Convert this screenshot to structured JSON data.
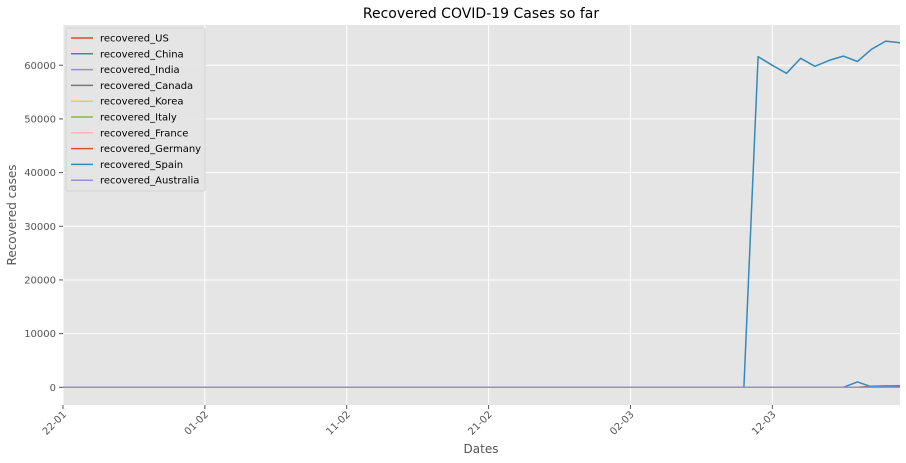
{
  "chart_data": {
    "type": "line",
    "title": "Recovered COVID-19 Cases so far",
    "xlabel": "Dates",
    "ylabel": "Recovered cases",
    "x_ticks": [
      "22-01",
      "01-02",
      "11-02",
      "21-02",
      "02-03",
      "12-03"
    ],
    "x": [
      "22-01",
      "23-01",
      "24-01",
      "25-01",
      "26-01",
      "27-01",
      "28-01",
      "29-01",
      "30-01",
      "31-01",
      "01-02",
      "02-02",
      "03-02",
      "04-02",
      "05-02",
      "06-02",
      "07-02",
      "08-02",
      "09-02",
      "10-02",
      "11-02",
      "12-02",
      "13-02",
      "14-02",
      "15-02",
      "16-02",
      "17-02",
      "18-02",
      "19-02",
      "20-02",
      "21-02",
      "22-02",
      "23-02",
      "24-02",
      "25-02",
      "26-02",
      "27-02",
      "28-02",
      "29-02",
      "01-03",
      "02-03",
      "03-03",
      "04-03",
      "05-03",
      "06-03",
      "07-03",
      "08-03",
      "09-03",
      "10-03",
      "11-03",
      "12-03",
      "13-03",
      "14-03",
      "15-03",
      "16-03",
      "17-03",
      "18-03",
      "19-03",
      "20-03",
      "21-03"
    ],
    "xlim": [
      "22-01",
      "21-03"
    ],
    "y_ticks": [
      0,
      10000,
      20000,
      30000,
      40000,
      50000,
      60000
    ],
    "ylim": [
      -3300,
      67500
    ],
    "grid": true,
    "legend_position": "upper-left",
    "series": [
      {
        "name": "recovered_US",
        "color": "#E24A33",
        "values": [
          0,
          0,
          0,
          0,
          0,
          0,
          0,
          0,
          0,
          0,
          0,
          0,
          0,
          0,
          0,
          0,
          0,
          0,
          0,
          0,
          0,
          0,
          0,
          0,
          0,
          0,
          0,
          0,
          0,
          0,
          0,
          0,
          0,
          0,
          0,
          0,
          0,
          0,
          0,
          0,
          0,
          0,
          0,
          0,
          0,
          0,
          0,
          0,
          0,
          0,
          0,
          0,
          0,
          0,
          0,
          0,
          0,
          0,
          147,
          147
        ]
      },
      {
        "name": "recovered_China",
        "color": "#348ABD",
        "values": [
          0,
          0,
          0,
          0,
          0,
          0,
          0,
          0,
          0,
          0,
          0,
          0,
          0,
          0,
          0,
          0,
          0,
          0,
          0,
          0,
          0,
          0,
          0,
          0,
          0,
          0,
          0,
          0,
          0,
          0,
          0,
          0,
          0,
          0,
          0,
          0,
          0,
          0,
          0,
          0,
          0,
          0,
          0,
          0,
          0,
          0,
          0,
          0,
          0,
          61600,
          60000,
          58500,
          61300,
          59800,
          60900,
          61700,
          60700,
          63000,
          64500,
          64200
        ]
      },
      {
        "name": "recovered_India",
        "color": "#988ED5",
        "values": [
          0,
          0,
          0,
          0,
          0,
          0,
          0,
          0,
          0,
          0,
          0,
          0,
          0,
          0,
          0,
          0,
          0,
          0,
          0,
          0,
          0,
          0,
          0,
          0,
          0,
          0,
          0,
          0,
          0,
          0,
          0,
          0,
          0,
          0,
          0,
          0,
          0,
          0,
          0,
          0,
          0,
          0,
          0,
          0,
          0,
          0,
          0,
          0,
          0,
          0,
          0,
          0,
          0,
          0,
          0,
          0,
          0,
          0,
          0,
          0
        ]
      },
      {
        "name": "recovered_Canada",
        "color": "#777777",
        "values": [
          0,
          0,
          0,
          0,
          0,
          0,
          0,
          0,
          0,
          0,
          0,
          0,
          0,
          0,
          0,
          0,
          0,
          0,
          0,
          0,
          0,
          0,
          0,
          0,
          0,
          0,
          0,
          0,
          0,
          0,
          0,
          0,
          0,
          0,
          0,
          0,
          0,
          0,
          0,
          0,
          0,
          0,
          0,
          0,
          0,
          0,
          0,
          0,
          0,
          0,
          0,
          0,
          0,
          0,
          0,
          0,
          0,
          0,
          0,
          0
        ]
      },
      {
        "name": "recovered_Korea",
        "color": "#FBC15E",
        "values": [
          0,
          0,
          0,
          0,
          0,
          0,
          0,
          0,
          0,
          0,
          0,
          0,
          0,
          0,
          0,
          0,
          0,
          0,
          0,
          0,
          0,
          0,
          0,
          0,
          0,
          0,
          0,
          0,
          0,
          0,
          0,
          0,
          0,
          0,
          0,
          0,
          0,
          0,
          0,
          0,
          0,
          0,
          0,
          0,
          0,
          0,
          0,
          0,
          0,
          0,
          0,
          0,
          0,
          0,
          0,
          0,
          0,
          0,
          0,
          0
        ]
      },
      {
        "name": "recovered_Italy",
        "color": "#8EBA42",
        "values": [
          0,
          0,
          0,
          0,
          0,
          0,
          0,
          0,
          0,
          0,
          0,
          0,
          0,
          0,
          0,
          0,
          0,
          0,
          0,
          0,
          0,
          0,
          0,
          0,
          0,
          0,
          0,
          0,
          0,
          0,
          0,
          0,
          0,
          0,
          0,
          0,
          0,
          0,
          0,
          0,
          0,
          0,
          0,
          0,
          0,
          0,
          0,
          0,
          0,
          0,
          0,
          0,
          0,
          0,
          0,
          0,
          0,
          0,
          0,
          0
        ]
      },
      {
        "name": "recovered_France",
        "color": "#FFB5B8",
        "values": [
          0,
          0,
          0,
          0,
          0,
          0,
          0,
          0,
          0,
          0,
          0,
          0,
          0,
          0,
          0,
          0,
          0,
          0,
          0,
          0,
          0,
          0,
          0,
          0,
          0,
          0,
          0,
          0,
          0,
          0,
          0,
          0,
          0,
          0,
          0,
          0,
          0,
          0,
          0,
          0,
          0,
          0,
          0,
          0,
          0,
          0,
          0,
          0,
          0,
          0,
          0,
          0,
          0,
          0,
          0,
          0,
          0,
          0,
          0,
          0
        ]
      },
      {
        "name": "recovered_Germany",
        "color": "#E24A33",
        "values": [
          0,
          0,
          0,
          0,
          0,
          0,
          0,
          0,
          0,
          0,
          0,
          0,
          0,
          0,
          0,
          0,
          0,
          0,
          0,
          0,
          0,
          0,
          0,
          0,
          0,
          0,
          0,
          0,
          0,
          0,
          0,
          0,
          0,
          0,
          0,
          0,
          0,
          0,
          0,
          0,
          0,
          0,
          0,
          0,
          0,
          0,
          0,
          0,
          0,
          0,
          0,
          0,
          0,
          0,
          0,
          0,
          0,
          180,
          250,
          280
        ]
      },
      {
        "name": "recovered_Spain",
        "color": "#348ABD",
        "values": [
          0,
          0,
          0,
          0,
          0,
          0,
          0,
          0,
          0,
          0,
          0,
          0,
          0,
          0,
          0,
          0,
          0,
          0,
          0,
          0,
          0,
          0,
          0,
          0,
          0,
          0,
          0,
          0,
          0,
          0,
          0,
          0,
          0,
          0,
          0,
          0,
          0,
          0,
          0,
          0,
          0,
          0,
          0,
          0,
          0,
          0,
          0,
          0,
          0,
          0,
          0,
          0,
          0,
          0,
          0,
          0,
          1000,
          100,
          150,
          200
        ]
      },
      {
        "name": "recovered_Australia",
        "color": "#988ED5",
        "values": [
          0,
          0,
          0,
          0,
          0,
          0,
          0,
          0,
          0,
          0,
          0,
          0,
          0,
          0,
          0,
          0,
          0,
          0,
          0,
          0,
          0,
          0,
          0,
          0,
          0,
          0,
          0,
          0,
          0,
          0,
          0,
          0,
          0,
          0,
          0,
          0,
          0,
          0,
          0,
          0,
          0,
          0,
          0,
          0,
          0,
          0,
          0,
          0,
          0,
          0,
          0,
          0,
          0,
          0,
          0,
          0,
          0,
          0,
          0,
          0
        ]
      }
    ]
  }
}
